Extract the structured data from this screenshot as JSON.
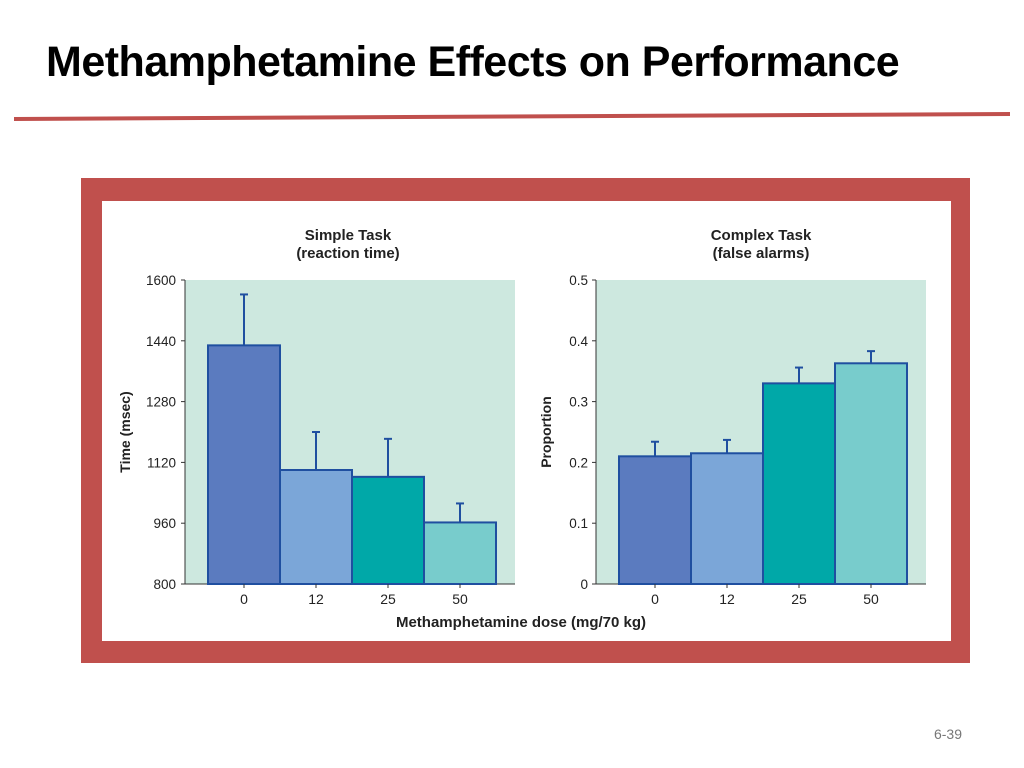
{
  "slide": {
    "title": "Methamphetamine Effects on Performance",
    "page_number": "6-39"
  },
  "colors": {
    "frame": "#c0504d",
    "rule": "#c0504d",
    "plot_bg": "#cde8df",
    "bar_outline": "#1f4fa0",
    "error_bar": "#1f4fa0",
    "bars": [
      "#5b7bbf",
      "#7ba6d8",
      "#00a8a8",
      "#78cccc"
    ]
  },
  "shared_xlabel": "Methamphetamine dose (mg/70 kg)",
  "chart_data": [
    {
      "type": "bar",
      "title": "Simple Task",
      "subtitle": "(reaction time)",
      "xlabel": "Methamphetamine dose (mg/70 kg)",
      "ylabel": "Time (msec)",
      "categories": [
        "0",
        "12",
        "25",
        "50"
      ],
      "values": [
        1428,
        1100,
        1082,
        962
      ],
      "errors": [
        134,
        100,
        100,
        50
      ],
      "ylim": [
        800,
        1600
      ],
      "yticks": [
        "800",
        "960",
        "1120",
        "1280",
        "1440",
        "1600"
      ],
      "grid": false
    },
    {
      "type": "bar",
      "title": "Complex Task",
      "subtitle": "(false alarms)",
      "xlabel": "Methamphetamine dose (mg/70 kg)",
      "ylabel": "Proportion",
      "categories": [
        "0",
        "12",
        "25",
        "50"
      ],
      "values": [
        0.21,
        0.215,
        0.33,
        0.363
      ],
      "errors": [
        0.024,
        0.022,
        0.026,
        0.02
      ],
      "ylim": [
        0,
        0.5
      ],
      "yticks": [
        "0",
        "0.1",
        "0.2",
        "0.3",
        "0.4",
        "0.5"
      ],
      "grid": false
    }
  ]
}
